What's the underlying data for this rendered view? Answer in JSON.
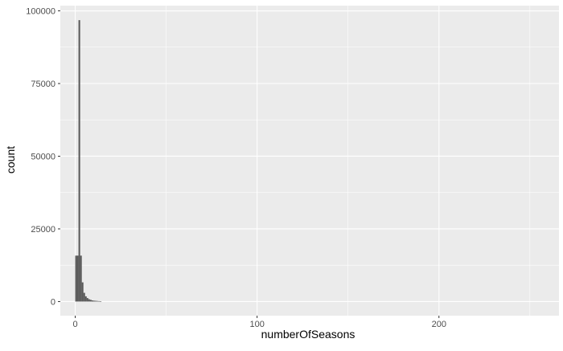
{
  "chart_data": {
    "type": "bar",
    "title": "",
    "xlabel": "numberOfSeasons",
    "ylabel": "count",
    "x_ticks": [
      0,
      100,
      200
    ],
    "y_ticks": [
      0,
      25000,
      50000,
      75000,
      100000
    ],
    "xlim": [
      -8.2,
      266
    ],
    "ylim": [
      -4850,
      101800
    ],
    "grid": true,
    "legend": "none",
    "bin_width": 0.9,
    "bars": [
      {
        "x": 0,
        "count": 15800
      },
      {
        "x": 0.9,
        "count": 15800
      },
      {
        "x": 1.8,
        "count": 96800
      },
      {
        "x": 2.7,
        "count": 15800
      },
      {
        "x": 3.6,
        "count": 6600
      },
      {
        "x": 4.5,
        "count": 3000
      },
      {
        "x": 5.4,
        "count": 1800
      },
      {
        "x": 6.3,
        "count": 1200
      },
      {
        "x": 7.2,
        "count": 800
      },
      {
        "x": 8.1,
        "count": 600
      },
      {
        "x": 9.0,
        "count": 400
      },
      {
        "x": 9.9,
        "count": 300
      },
      {
        "x": 10.8,
        "count": 250
      },
      {
        "x": 11.7,
        "count": 200
      },
      {
        "x": 12.6,
        "count": 150
      },
      {
        "x": 13.5,
        "count": 100
      }
    ],
    "colors": {
      "panel": "#ebebeb",
      "grid_major": "#ffffff",
      "bar": "#595959",
      "tick_text": "#4d4d4d",
      "axis_title": "#000000"
    }
  }
}
